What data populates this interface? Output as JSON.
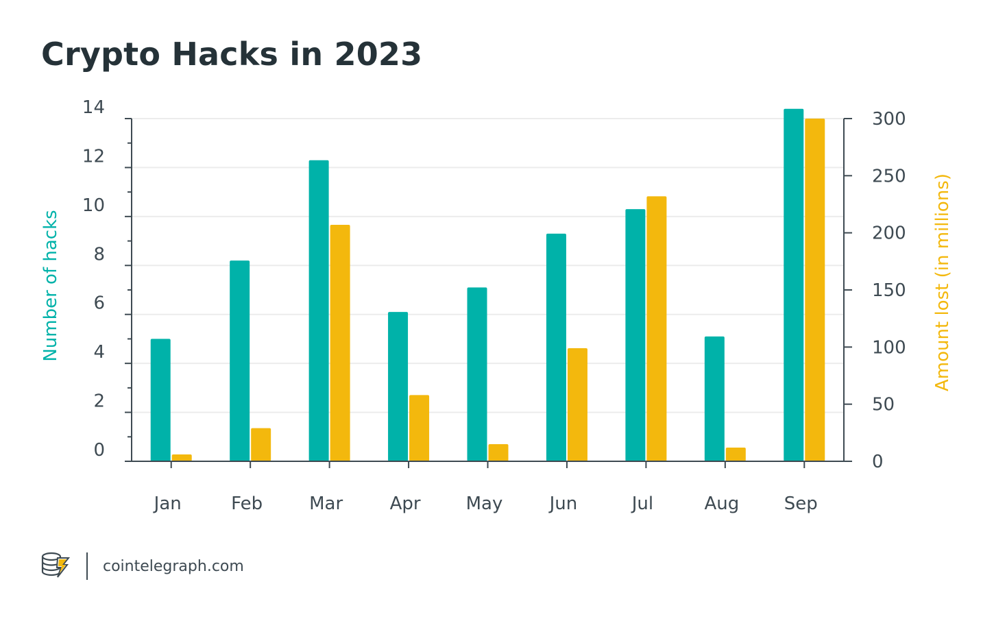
{
  "title": "Crypto Hacks in 2023",
  "footer": {
    "site": "cointelegraph.com",
    "logo_icon": "cointelegraph-logo-icon"
  },
  "colors": {
    "hacks": "#00b2a9",
    "amount": "#f3b80d",
    "axis": "#3e4a52",
    "grid": "#ececec",
    "text": "#253238"
  },
  "chart_data": {
    "type": "bar",
    "title": "Crypto Hacks in 2023",
    "categories": [
      "Jan",
      "Feb",
      "Mar",
      "Apr",
      "May",
      "Jun",
      "Jul",
      "Aug",
      "Sep"
    ],
    "series": [
      {
        "axis": "left",
        "color": "#00b2a9",
        "values": [
          5,
          8.2,
          12.3,
          6.1,
          7.1,
          9.3,
          10.3,
          5.1,
          14.4
        ]
      },
      {
        "axis": "right",
        "color": "#f3b80d",
        "values": [
          6,
          29,
          207,
          58,
          15,
          99,
          232,
          12,
          300
        ]
      }
    ],
    "ylabel": "Number of hacks",
    "y2label": "Amount lost (in millions)",
    "ylim": [
      0,
      14
    ],
    "y2lim": [
      0,
      300
    ],
    "yticks": [
      0,
      2,
      4,
      6,
      8,
      10,
      12,
      14
    ],
    "y2ticks": [
      0,
      50,
      100,
      150,
      200,
      250,
      300
    ],
    "grid": true,
    "legend": "none"
  }
}
